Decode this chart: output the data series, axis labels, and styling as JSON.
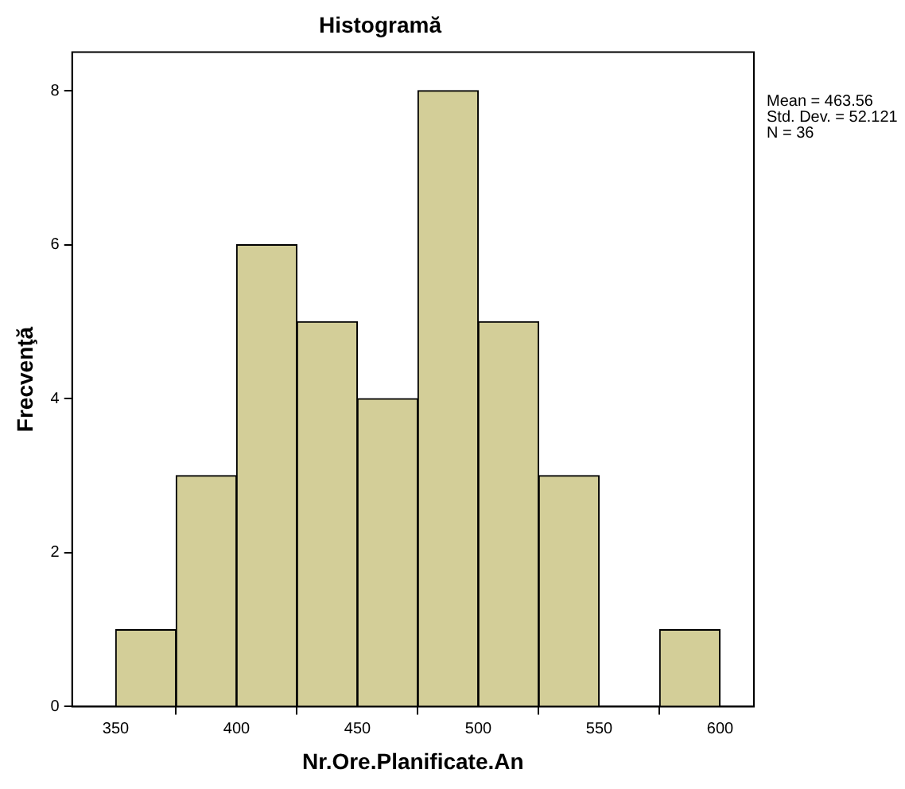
{
  "chart_data": {
    "type": "histogram",
    "title": "Histogramă",
    "xlabel": "Nr.Ore.Planificate.An",
    "ylabel": "Frecvenţă",
    "bins": [
      350,
      375,
      400,
      425,
      450,
      475,
      500,
      525,
      550,
      575,
      600
    ],
    "values": [
      1,
      3,
      6,
      5,
      4,
      8,
      5,
      3,
      0,
      1
    ],
    "color": "#d3ce98",
    "xlim": [
      332,
      614
    ],
    "xticks": [
      350,
      400,
      450,
      500,
      550,
      600
    ],
    "ylim": [
      0,
      8.5
    ],
    "yticks": [
      0,
      2,
      4,
      6,
      8
    ],
    "grid": false,
    "legend": false,
    "annotations": [
      "Mean = 463.56",
      "Std. Dev. = 52.121",
      "N = 36"
    ]
  }
}
